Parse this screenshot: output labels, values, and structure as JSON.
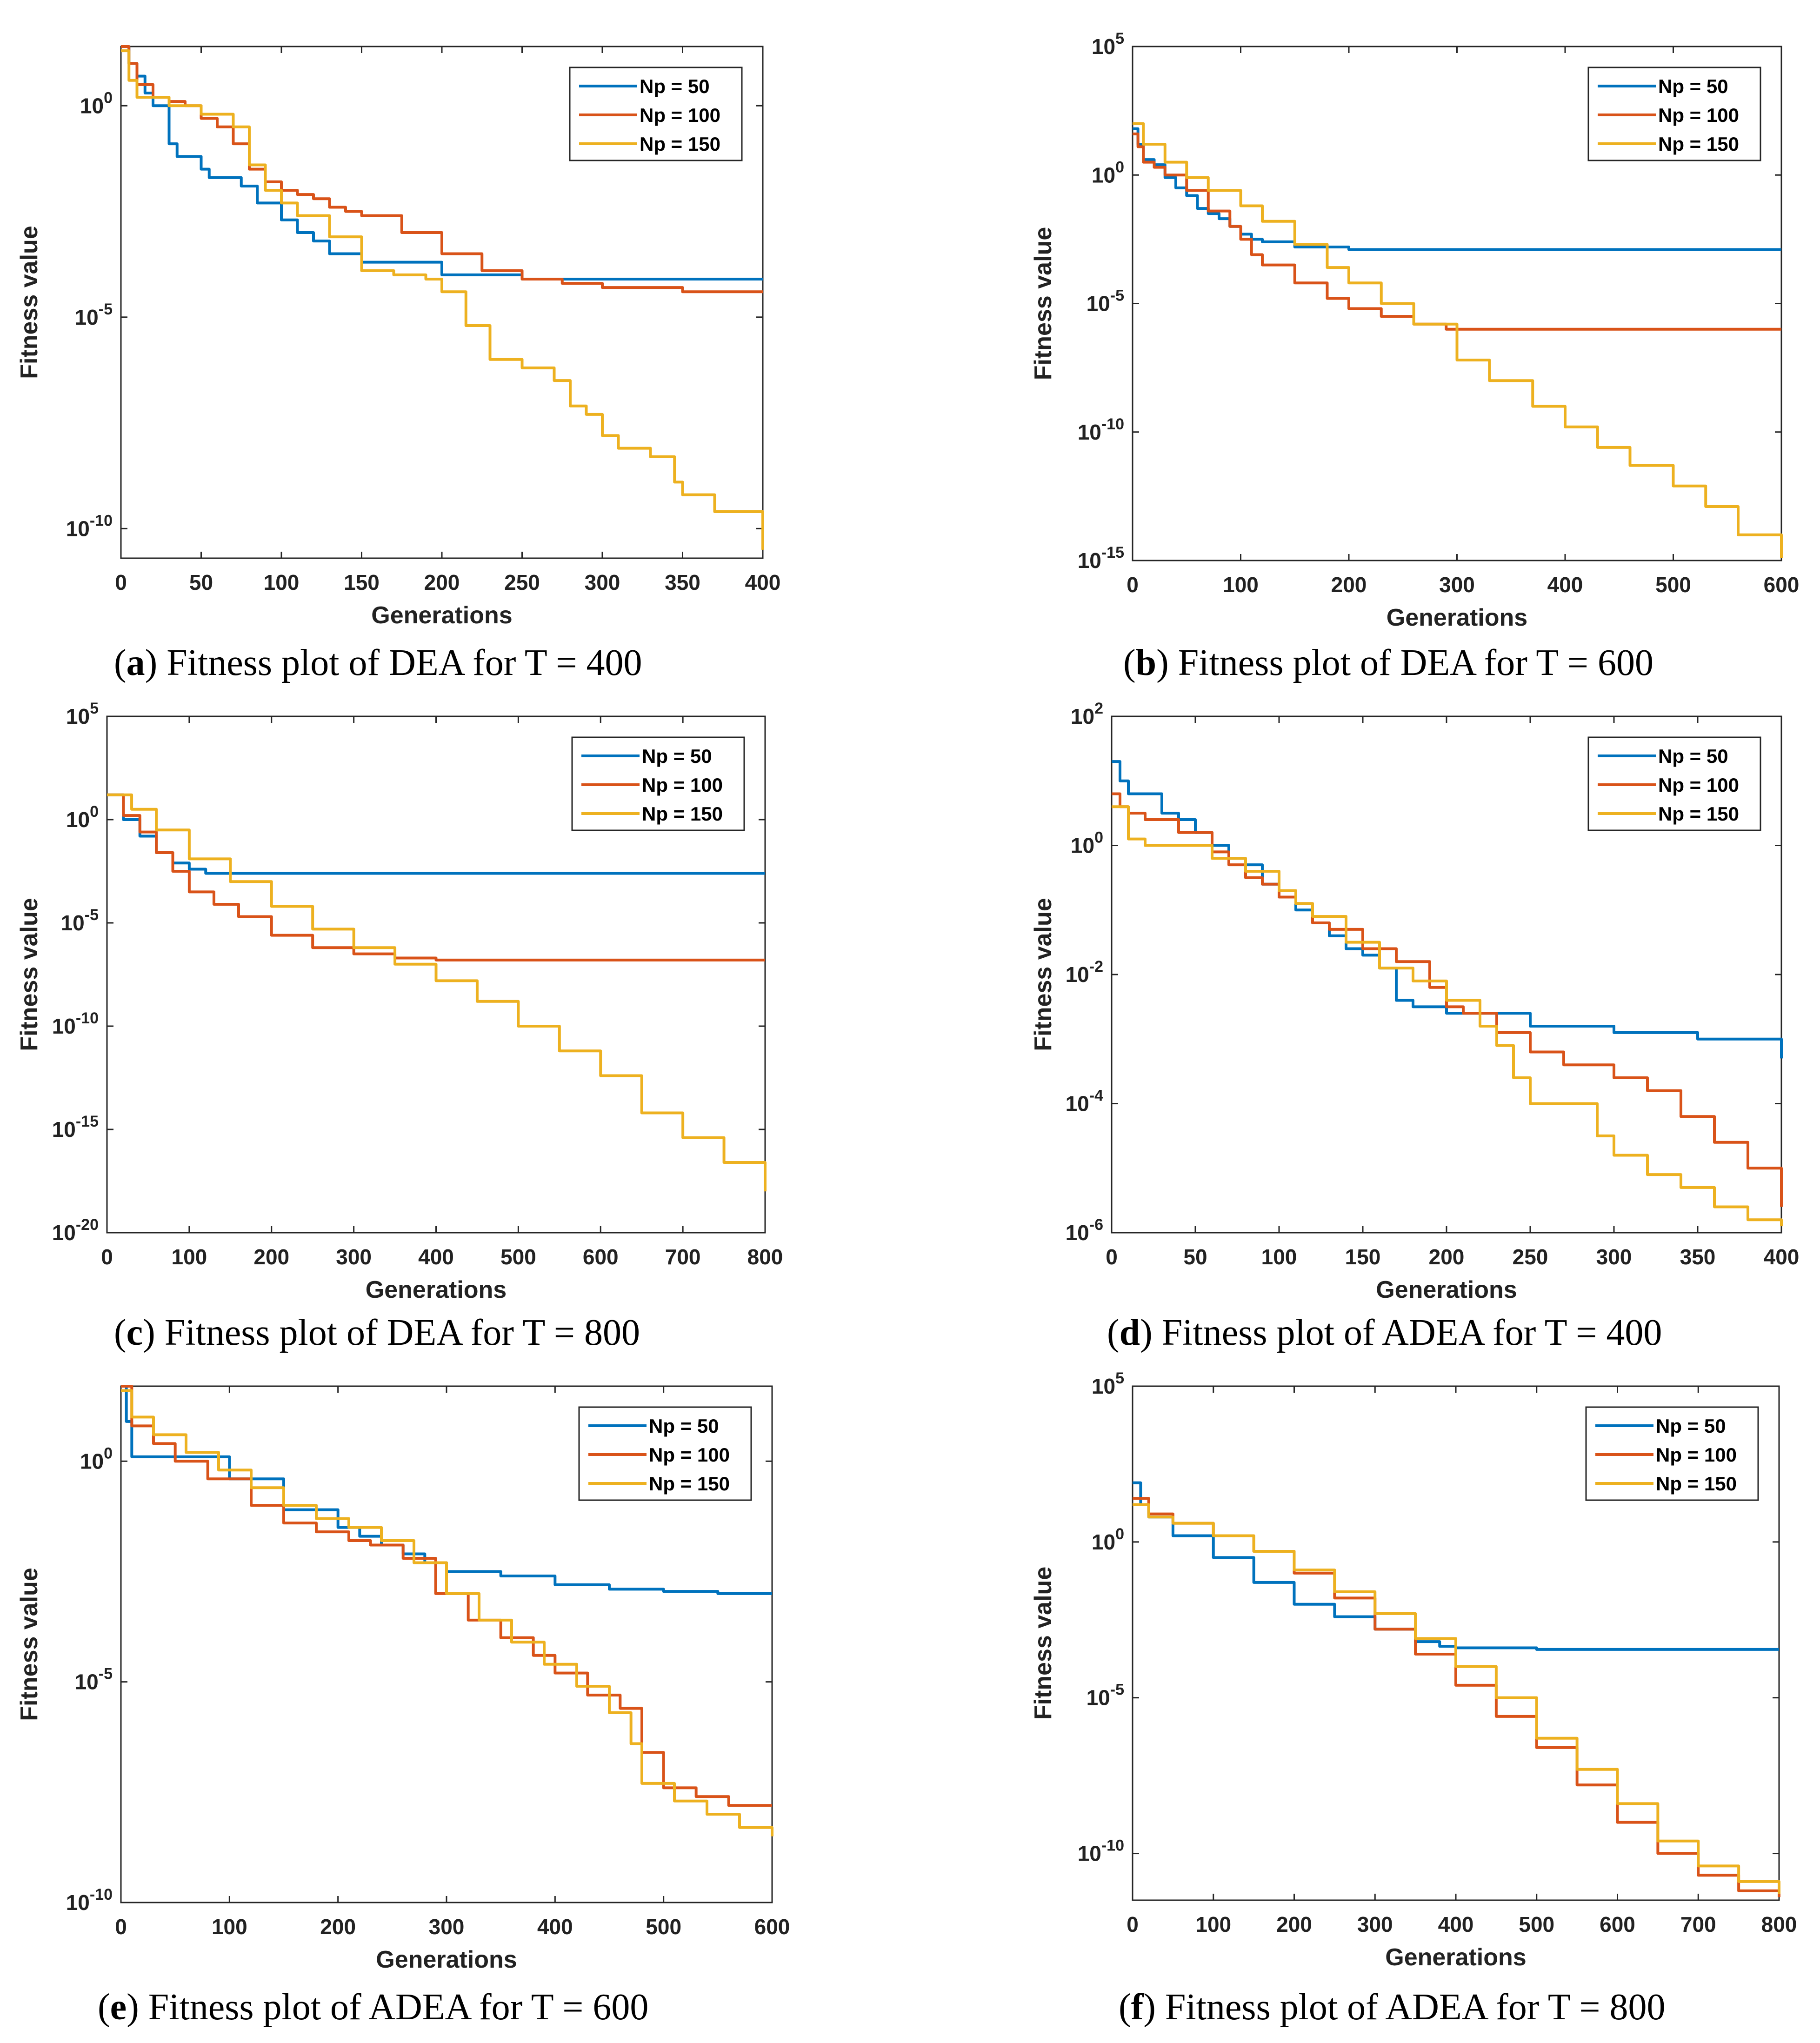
{
  "colors": {
    "Np = 50": "#0072BD",
    "Np = 100": "#D95319",
    "Np = 150": "#EDB120"
  },
  "chart_data": [
    {
      "type": "line",
      "yscale": "log",
      "title": "Fitness plot of DEA for T = 400",
      "caption_letter": "a",
      "caption_text": "Fitness plot of DEA for T = 400",
      "xlabel": "Generations",
      "ylabel": "Fitness value",
      "xlim": [
        0,
        400
      ],
      "ylim_exp": [
        -10.7,
        1.4
      ],
      "xticks": [
        0,
        50,
        100,
        150,
        200,
        250,
        300,
        350,
        400
      ],
      "yticks_exp": [
        0,
        -5,
        -10
      ],
      "legend": [
        "Np = 50",
        "Np = 100",
        "Np = 150"
      ],
      "legend_position": "top-right",
      "series": [
        {
          "name": "Np = 50",
          "x": [
            0,
            5,
            10,
            15,
            20,
            30,
            35,
            40,
            50,
            55,
            65,
            75,
            85,
            100,
            110,
            120,
            130,
            150,
            200,
            250,
            300,
            400
          ],
          "y_exp": [
            1.4,
            1.0,
            0.7,
            0.3,
            0,
            -0.9,
            -1.2,
            -1.2,
            -1.5,
            -1.7,
            -1.7,
            -1.9,
            -2.3,
            -2.7,
            -3.0,
            -3.2,
            -3.5,
            -3.7,
            -4.0,
            -4.1,
            -4.1,
            -4.1
          ]
        },
        {
          "name": "Np = 100",
          "x": [
            0,
            5,
            10,
            20,
            30,
            40,
            50,
            60,
            70,
            80,
            90,
            100,
            110,
            120,
            130,
            140,
            150,
            175,
            200,
            225,
            250,
            275,
            300,
            350,
            400
          ],
          "y_exp": [
            1.4,
            1.0,
            0.5,
            0.2,
            0.1,
            0,
            -0.3,
            -0.5,
            -0.9,
            -1.5,
            -1.8,
            -2.0,
            -2.1,
            -2.2,
            -2.4,
            -2.5,
            -2.6,
            -3.0,
            -3.5,
            -3.9,
            -4.1,
            -4.2,
            -4.3,
            -4.4,
            -4.4
          ]
        },
        {
          "name": "Np = 150",
          "x": [
            0,
            5,
            10,
            30,
            50,
            70,
            80,
            90,
            100,
            110,
            130,
            150,
            170,
            190,
            200,
            215,
            230,
            250,
            270,
            280,
            290,
            300,
            310,
            330,
            345,
            350,
            370,
            400
          ],
          "y_exp": [
            1.3,
            0.6,
            0.2,
            0,
            -0.2,
            -0.5,
            -1.4,
            -2.0,
            -2.3,
            -2.6,
            -3.1,
            -3.9,
            -4.0,
            -4.1,
            -4.4,
            -5.2,
            -6.0,
            -6.2,
            -6.5,
            -7.1,
            -7.3,
            -7.8,
            -8.1,
            -8.3,
            -8.9,
            -9.2,
            -9.6,
            -10.5
          ]
        }
      ]
    },
    {
      "type": "line",
      "yscale": "log",
      "title": "Fitness plot of DEA for T = 600",
      "caption_letter": "b",
      "caption_text": "Fitness plot of DEA for T = 600",
      "xlabel": "Generations",
      "ylabel": "Fitness value",
      "xlim": [
        0,
        600
      ],
      "ylim_exp": [
        -15,
        5
      ],
      "xticks": [
        0,
        100,
        200,
        300,
        400,
        500,
        600
      ],
      "yticks_exp": [
        5,
        0,
        -5,
        -10,
        -15
      ],
      "legend": [
        "Np = 50",
        "Np = 100",
        "Np = 150"
      ],
      "legend_position": "top-right",
      "series": [
        {
          "name": "Np = 50",
          "x": [
            0,
            5,
            10,
            20,
            30,
            40,
            50,
            60,
            70,
            80,
            90,
            100,
            110,
            120,
            150,
            200,
            250,
            300,
            400,
            500,
            600
          ],
          "y_exp": [
            1.8,
            1.2,
            0.6,
            0.4,
            -0.1,
            -0.5,
            -0.8,
            -1.3,
            -1.5,
            -1.7,
            -2.0,
            -2.3,
            -2.5,
            -2.6,
            -2.8,
            -2.9,
            -2.9,
            -2.9,
            -2.9,
            -2.9,
            -2.9
          ]
        },
        {
          "name": "Np = 100",
          "x": [
            0,
            5,
            10,
            20,
            30,
            50,
            70,
            90,
            100,
            110,
            120,
            150,
            180,
            200,
            230,
            260,
            290,
            350,
            400,
            500,
            600
          ],
          "y_exp": [
            1.6,
            1.1,
            0.5,
            0.3,
            0,
            -0.6,
            -1.4,
            -2.0,
            -2.5,
            -3.1,
            -3.5,
            -4.2,
            -4.8,
            -5.2,
            -5.5,
            -5.8,
            -6.0,
            -6.0,
            -6.0,
            -6.0,
            -6.0
          ]
        },
        {
          "name": "Np = 150",
          "x": [
            0,
            10,
            30,
            50,
            70,
            100,
            120,
            150,
            180,
            200,
            230,
            260,
            300,
            330,
            370,
            400,
            430,
            460,
            500,
            530,
            560,
            600
          ],
          "y_exp": [
            2.0,
            1.2,
            0.5,
            -0.1,
            -0.6,
            -1.2,
            -1.8,
            -2.7,
            -3.6,
            -4.2,
            -5.0,
            -5.8,
            -7.2,
            -8.0,
            -9.0,
            -9.8,
            -10.6,
            -11.3,
            -12.1,
            -12.9,
            -14.0,
            -14.9
          ]
        }
      ]
    },
    {
      "type": "line",
      "yscale": "log",
      "title": "Fitness plot of DEA for T = 800",
      "caption_letter": "c",
      "caption_text": "Fitness plot of DEA for T = 800",
      "xlabel": "Generations",
      "ylabel": "Fitness value",
      "xlim": [
        0,
        800
      ],
      "ylim_exp": [
        -20,
        5
      ],
      "xticks": [
        0,
        100,
        200,
        300,
        400,
        500,
        600,
        700,
        800
      ],
      "yticks_exp": [
        5,
        0,
        -5,
        -10,
        -15,
        -20
      ],
      "legend": [
        "Np = 50",
        "Np = 100",
        "Np = 150"
      ],
      "legend_position": "top-right",
      "series": [
        {
          "name": "Np = 50",
          "x": [
            0,
            20,
            40,
            60,
            80,
            100,
            120,
            150,
            200,
            300,
            400,
            500,
            600,
            700,
            800
          ],
          "y_exp": [
            1.2,
            0,
            -0.8,
            -1.6,
            -2.1,
            -2.4,
            -2.6,
            -2.6,
            -2.6,
            -2.6,
            -2.6,
            -2.6,
            -2.6,
            -2.6,
            -2.6
          ]
        },
        {
          "name": "Np = 100",
          "x": [
            0,
            20,
            40,
            60,
            80,
            100,
            130,
            160,
            200,
            250,
            300,
            350,
            400,
            500,
            600,
            700,
            800
          ],
          "y_exp": [
            1.2,
            0.2,
            -0.6,
            -1.6,
            -2.5,
            -3.5,
            -4.1,
            -4.7,
            -5.6,
            -6.2,
            -6.5,
            -6.7,
            -6.8,
            -6.8,
            -6.8,
            -6.8,
            -6.8
          ]
        },
        {
          "name": "Np = 150",
          "x": [
            0,
            30,
            60,
            100,
            150,
            200,
            250,
            300,
            350,
            400,
            450,
            500,
            550,
            600,
            650,
            700,
            750,
            800
          ],
          "y_exp": [
            1.2,
            0.5,
            -0.5,
            -1.9,
            -3.0,
            -4.2,
            -5.3,
            -6.2,
            -7.0,
            -7.8,
            -8.8,
            -10.0,
            -11.2,
            -12.4,
            -14.2,
            -15.4,
            -16.6,
            -18.0
          ]
        }
      ]
    },
    {
      "type": "line",
      "yscale": "log",
      "title": "Fitness plot of ADEA for T = 400",
      "caption_letter": "d",
      "caption_text": "Fitness plot of ADEA for T = 400",
      "xlabel": "Generations",
      "ylabel": "Fitness value",
      "xlim": [
        0,
        400
      ],
      "ylim_exp": [
        -6,
        2
      ],
      "xticks": [
        0,
        50,
        100,
        150,
        200,
        250,
        300,
        350,
        400
      ],
      "yticks_exp": [
        2,
        0,
        -2,
        -4,
        -6
      ],
      "legend": [
        "Np = 50",
        "Np = 100",
        "Np = 150"
      ],
      "legend_position": "top-right",
      "series": [
        {
          "name": "Np = 50",
          "x": [
            0,
            5,
            10,
            30,
            40,
            50,
            60,
            70,
            80,
            90,
            100,
            110,
            120,
            130,
            140,
            150,
            160,
            170,
            180,
            200,
            250,
            300,
            350,
            400
          ],
          "y_exp": [
            1.3,
            1.0,
            0.8,
            0.5,
            0.4,
            0.2,
            0,
            -0.2,
            -0.3,
            -0.6,
            -0.8,
            -1.0,
            -1.2,
            -1.4,
            -1.6,
            -1.7,
            -1.9,
            -2.4,
            -2.5,
            -2.6,
            -2.8,
            -2.9,
            -3.0,
            -3.3
          ]
        },
        {
          "name": "Np = 100",
          "x": [
            0,
            5,
            10,
            20,
            40,
            60,
            70,
            80,
            90,
            100,
            110,
            120,
            130,
            150,
            170,
            190,
            200,
            210,
            230,
            250,
            270,
            300,
            320,
            340,
            360,
            380,
            400
          ],
          "y_exp": [
            0.8,
            0.6,
            0.5,
            0.4,
            0.2,
            -0.1,
            -0.3,
            -0.5,
            -0.6,
            -0.8,
            -0.9,
            -1.2,
            -1.3,
            -1.6,
            -1.8,
            -2.2,
            -2.5,
            -2.6,
            -2.9,
            -3.2,
            -3.4,
            -3.6,
            -3.8,
            -4.2,
            -4.6,
            -5.0,
            -5.6
          ]
        },
        {
          "name": "Np = 150",
          "x": [
            0,
            10,
            20,
            40,
            60,
            80,
            100,
            110,
            120,
            140,
            160,
            180,
            200,
            220,
            230,
            240,
            250,
            270,
            280,
            290,
            300,
            320,
            340,
            360,
            380,
            400
          ],
          "y_exp": [
            0.6,
            0.1,
            0,
            0,
            -0.2,
            -0.4,
            -0.7,
            -0.9,
            -1.1,
            -1.5,
            -1.9,
            -2.1,
            -2.4,
            -2.8,
            -3.1,
            -3.6,
            -4.0,
            -4.0,
            -4.0,
            -4.5,
            -4.8,
            -5.1,
            -5.3,
            -5.6,
            -5.8,
            -5.9
          ]
        }
      ]
    },
    {
      "type": "line",
      "yscale": "log",
      "title": "Fitness plot of ADEA for T = 600",
      "caption_letter": "e",
      "caption_text": "Fitness plot of ADEA for T = 600",
      "xlabel": "Generations",
      "ylabel": "Fitness value",
      "xlim": [
        0,
        600
      ],
      "ylim_exp": [
        -10,
        1.7
      ],
      "xticks": [
        0,
        100,
        200,
        300,
        400,
        500,
        600
      ],
      "yticks_exp": [
        0,
        -5,
        -10
      ],
      "legend": [
        "Np = 50",
        "Np = 100",
        "Np = 150"
      ],
      "legend_position": "top-right",
      "series": [
        {
          "name": "Np = 50",
          "x": [
            0,
            5,
            10,
            50,
            100,
            150,
            200,
            220,
            240,
            260,
            280,
            300,
            350,
            400,
            450,
            500,
            550,
            600
          ],
          "y_exp": [
            1.7,
            0.9,
            0.1,
            0.1,
            -0.4,
            -1.1,
            -1.5,
            -1.7,
            -1.9,
            -2.1,
            -2.3,
            -2.5,
            -2.6,
            -2.8,
            -2.9,
            -2.95,
            -3.0,
            -3.0
          ]
        },
        {
          "name": "Np = 100",
          "x": [
            0,
            10,
            30,
            50,
            80,
            120,
            150,
            180,
            210,
            230,
            260,
            290,
            320,
            350,
            380,
            400,
            430,
            460,
            480,
            500,
            530,
            560,
            600
          ],
          "y_exp": [
            1.7,
            0.8,
            0.4,
            0,
            -0.4,
            -1.0,
            -1.4,
            -1.6,
            -1.8,
            -1.9,
            -2.2,
            -3.0,
            -3.6,
            -4.0,
            -4.4,
            -4.8,
            -5.3,
            -5.6,
            -6.6,
            -7.4,
            -7.6,
            -7.8,
            -7.8
          ]
        },
        {
          "name": "Np = 150",
          "x": [
            0,
            10,
            30,
            60,
            90,
            120,
            150,
            180,
            210,
            240,
            270,
            300,
            330,
            360,
            390,
            420,
            450,
            470,
            480,
            510,
            540,
            570,
            600
          ],
          "y_exp": [
            1.6,
            1.0,
            0.6,
            0.2,
            -0.2,
            -0.6,
            -1.0,
            -1.3,
            -1.5,
            -1.8,
            -2.3,
            -3.0,
            -3.6,
            -4.1,
            -4.6,
            -5.1,
            -5.7,
            -6.4,
            -7.3,
            -7.7,
            -8.0,
            -8.3,
            -8.5
          ]
        }
      ]
    },
    {
      "type": "line",
      "yscale": "log",
      "title": "Fitness plot of ADEA for T = 800",
      "caption_letter": "f",
      "caption_text": "Fitness plot of ADEA for T = 800",
      "xlabel": "Generations",
      "ylabel": "Fitness value",
      "xlim": [
        0,
        800
      ],
      "ylim_exp": [
        -11.5,
        5
      ],
      "xticks": [
        0,
        100,
        200,
        300,
        400,
        500,
        600,
        700,
        800
      ],
      "yticks_exp": [
        5,
        0,
        -5,
        -10
      ],
      "legend": [
        "Np = 50",
        "Np = 100",
        "Np = 150"
      ],
      "legend_position": "top-right",
      "series": [
        {
          "name": "Np = 50",
          "x": [
            0,
            10,
            20,
            50,
            100,
            150,
            200,
            250,
            300,
            350,
            380,
            400,
            500,
            600,
            700,
            800
          ],
          "y_exp": [
            1.9,
            1.2,
            0.8,
            0.2,
            -0.5,
            -1.3,
            -2.0,
            -2.4,
            -2.8,
            -3.2,
            -3.35,
            -3.4,
            -3.45,
            -3.45,
            -3.45,
            -3.45
          ]
        },
        {
          "name": "Np = 100",
          "x": [
            0,
            20,
            50,
            100,
            150,
            200,
            250,
            300,
            350,
            400,
            450,
            500,
            550,
            600,
            650,
            700,
            750,
            800
          ],
          "y_exp": [
            1.4,
            0.9,
            0.6,
            0.2,
            -0.3,
            -1.0,
            -1.8,
            -2.8,
            -3.6,
            -4.6,
            -5.6,
            -6.6,
            -7.8,
            -9.0,
            -10.0,
            -10.7,
            -11.2,
            -11.4
          ]
        },
        {
          "name": "Np = 150",
          "x": [
            0,
            20,
            50,
            100,
            150,
            200,
            250,
            300,
            350,
            400,
            450,
            500,
            550,
            600,
            650,
            700,
            750,
            800
          ],
          "y_exp": [
            1.2,
            0.8,
            0.6,
            0.2,
            -0.3,
            -0.9,
            -1.6,
            -2.3,
            -3.1,
            -4.0,
            -5.0,
            -6.3,
            -7.3,
            -8.4,
            -9.6,
            -10.4,
            -10.9,
            -11.3
          ]
        }
      ]
    }
  ]
}
